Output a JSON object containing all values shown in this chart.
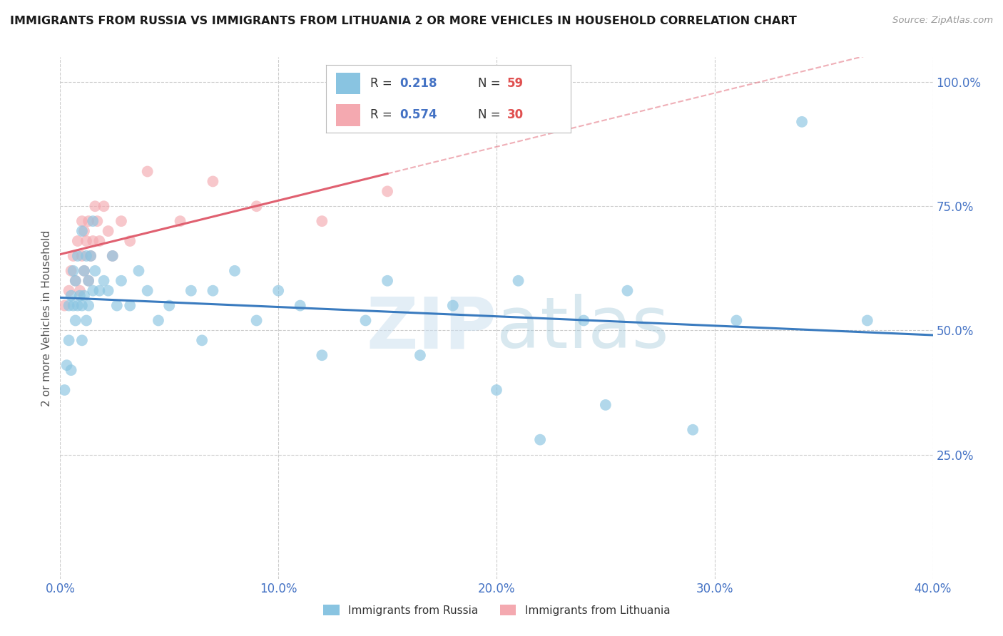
{
  "title": "IMMIGRANTS FROM RUSSIA VS IMMIGRANTS FROM LITHUANIA 2 OR MORE VEHICLES IN HOUSEHOLD CORRELATION CHART",
  "source_text": "Source: ZipAtlas.com",
  "ylabel": "2 or more Vehicles in Household",
  "xlim": [
    0.0,
    0.4
  ],
  "ylim": [
    0.0,
    1.05
  ],
  "xtick_labels": [
    "0.0%",
    "10.0%",
    "20.0%",
    "30.0%",
    "40.0%"
  ],
  "xtick_vals": [
    0.0,
    0.1,
    0.2,
    0.3,
    0.4
  ],
  "ytick_labels": [
    "25.0%",
    "50.0%",
    "75.0%",
    "100.0%"
  ],
  "ytick_vals": [
    0.25,
    0.5,
    0.75,
    1.0
  ],
  "russia_R": 0.218,
  "russia_N": 59,
  "lithuania_R": 0.574,
  "lithuania_N": 30,
  "russia_color": "#89c4e1",
  "lithuania_color": "#f4a9b0",
  "russia_line_color": "#3a7bbf",
  "lithuania_line_color": "#e06070",
  "russia_x": [
    0.002,
    0.003,
    0.004,
    0.004,
    0.005,
    0.005,
    0.006,
    0.006,
    0.007,
    0.007,
    0.008,
    0.008,
    0.009,
    0.01,
    0.01,
    0.01,
    0.011,
    0.011,
    0.012,
    0.012,
    0.013,
    0.013,
    0.014,
    0.015,
    0.015,
    0.016,
    0.018,
    0.02,
    0.022,
    0.024,
    0.026,
    0.028,
    0.032,
    0.036,
    0.04,
    0.045,
    0.05,
    0.06,
    0.065,
    0.07,
    0.08,
    0.09,
    0.1,
    0.11,
    0.12,
    0.14,
    0.15,
    0.165,
    0.18,
    0.2,
    0.21,
    0.22,
    0.24,
    0.25,
    0.26,
    0.29,
    0.31,
    0.34,
    0.37
  ],
  "russia_y": [
    0.38,
    0.43,
    0.48,
    0.55,
    0.57,
    0.42,
    0.55,
    0.62,
    0.6,
    0.52,
    0.65,
    0.55,
    0.57,
    0.7,
    0.55,
    0.48,
    0.62,
    0.57,
    0.65,
    0.52,
    0.6,
    0.55,
    0.65,
    0.72,
    0.58,
    0.62,
    0.58,
    0.6,
    0.58,
    0.65,
    0.55,
    0.6,
    0.55,
    0.62,
    0.58,
    0.52,
    0.55,
    0.58,
    0.48,
    0.58,
    0.62,
    0.52,
    0.58,
    0.55,
    0.45,
    0.52,
    0.6,
    0.45,
    0.55,
    0.38,
    0.6,
    0.28,
    0.52,
    0.35,
    0.58,
    0.3,
    0.52,
    0.92,
    0.52
  ],
  "lithuania_x": [
    0.002,
    0.004,
    0.005,
    0.006,
    0.007,
    0.008,
    0.009,
    0.01,
    0.01,
    0.011,
    0.011,
    0.012,
    0.013,
    0.013,
    0.014,
    0.015,
    0.016,
    0.017,
    0.018,
    0.02,
    0.022,
    0.024,
    0.028,
    0.032,
    0.04,
    0.055,
    0.07,
    0.09,
    0.12,
    0.15
  ],
  "lithuania_y": [
    0.55,
    0.58,
    0.62,
    0.65,
    0.6,
    0.68,
    0.58,
    0.72,
    0.65,
    0.7,
    0.62,
    0.68,
    0.72,
    0.6,
    0.65,
    0.68,
    0.75,
    0.72,
    0.68,
    0.75,
    0.7,
    0.65,
    0.72,
    0.68,
    0.82,
    0.72,
    0.8,
    0.75,
    0.72,
    0.78
  ],
  "legend_russia_label": "Immigrants from Russia",
  "legend_lithuania_label": "Immigrants from Lithuania"
}
